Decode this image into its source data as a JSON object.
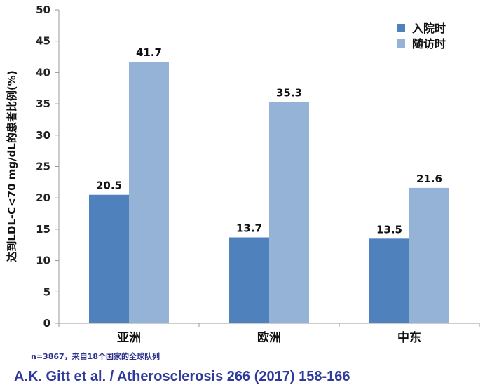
{
  "chart_data": {
    "type": "bar",
    "categories": [
      "亚洲",
      "欧洲",
      "中东"
    ],
    "series": [
      {
        "name": "入院时",
        "values": [
          20.5,
          13.7,
          13.5
        ],
        "color": "#4f81bd"
      },
      {
        "name": "随访时",
        "values": [
          41.7,
          35.3,
          21.6
        ],
        "color": "#95b3d7"
      }
    ],
    "ylabel": "达到LDL-C<70 mg/dL的患者比例(%)",
    "ylim": [
      0,
      50
    ],
    "yticks": [
      0,
      5,
      10,
      15,
      20,
      25,
      30,
      35,
      40,
      45,
      50
    ],
    "grid": false,
    "legend_position": "top-right",
    "data_labels": true
  },
  "footnote": "n=3867，来自18个国家的全球队列",
  "citation": "A.K. Gitt et al. / Atherosclerosis 266 (2017) 158-166"
}
